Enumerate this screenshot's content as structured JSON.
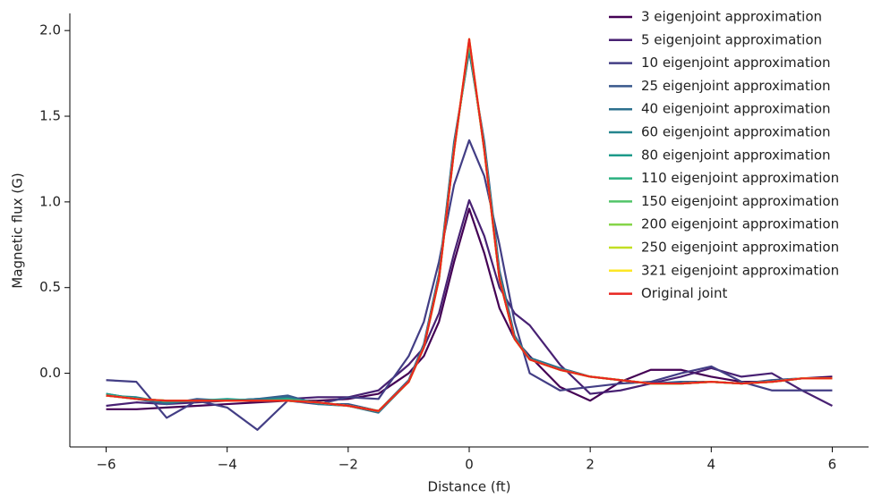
{
  "chart_data": {
    "type": "line",
    "xlabel": "Distance (ft)",
    "ylabel": "Magnetic flux (G)",
    "xlim": [
      -6.6,
      6.6
    ],
    "ylim": [
      -0.43,
      2.1
    ],
    "xticks": [
      {
        "value": -6,
        "label": "−6"
      },
      {
        "value": -4,
        "label": "−4"
      },
      {
        "value": -2,
        "label": "−2"
      },
      0,
      2,
      4,
      6
    ],
    "yticks": [
      {
        "value": 0,
        "label": "0.0"
      },
      {
        "value": 0.5,
        "label": "0.5"
      },
      {
        "value": 1,
        "label": "1.0"
      },
      {
        "value": 1.5,
        "label": "1.5"
      },
      {
        "value": 2,
        "label": "2.0"
      }
    ],
    "legend": "upper right",
    "x": [
      -6,
      -5.5,
      -5,
      -4.5,
      -4,
      -3.5,
      -3,
      -2.5,
      -2,
      -1.5,
      -1,
      -0.75,
      -0.5,
      -0.25,
      0,
      0.25,
      0.5,
      0.75,
      1,
      1.5,
      2,
      2.5,
      3,
      3.5,
      4,
      4.5,
      5,
      5.5,
      6
    ],
    "series": [
      {
        "name": "3 eigenjoint approximation",
        "color": "#440154",
        "values": [
          -0.21,
          -0.21,
          -0.2,
          -0.19,
          -0.18,
          -0.17,
          -0.16,
          -0.16,
          -0.15,
          -0.12,
          0.0,
          0.1,
          0.3,
          0.65,
          0.96,
          0.7,
          0.38,
          0.2,
          0.1,
          -0.08,
          -0.16,
          -0.05,
          0.02,
          0.02,
          -0.02,
          -0.05,
          -0.05,
          -0.03,
          -0.02
        ]
      },
      {
        "name": "5 eigenjoint approximation",
        "color": "#482173",
        "values": [
          -0.19,
          -0.17,
          -0.18,
          -0.17,
          -0.16,
          -0.15,
          -0.15,
          -0.14,
          -0.14,
          -0.1,
          0.05,
          0.15,
          0.35,
          0.7,
          1.01,
          0.8,
          0.5,
          0.35,
          0.28,
          0.05,
          -0.12,
          -0.1,
          -0.06,
          -0.02,
          0.03,
          -0.02,
          0.0,
          -0.1,
          -0.19
        ]
      },
      {
        "name": "10 eigenjoint approximation",
        "color": "#433e85",
        "values": [
          -0.04,
          -0.05,
          -0.26,
          -0.16,
          -0.2,
          -0.33,
          -0.16,
          -0.18,
          -0.14,
          -0.15,
          0.1,
          0.3,
          0.65,
          1.1,
          1.36,
          1.15,
          0.75,
          0.3,
          0.0,
          -0.1,
          -0.08,
          -0.06,
          -0.05,
          0.0,
          0.04,
          -0.05,
          -0.1,
          -0.1,
          -0.1
        ]
      },
      {
        "name": "25 eigenjoint approximation",
        "color": "#38588c",
        "values": [
          -0.12,
          -0.15,
          -0.18,
          -0.15,
          -0.16,
          -0.15,
          -0.13,
          -0.18,
          -0.18,
          -0.22,
          -0.04,
          0.17,
          0.58,
          1.35,
          1.88,
          1.35,
          0.6,
          0.22,
          0.08,
          0.03,
          -0.02,
          -0.04,
          -0.06,
          -0.05,
          -0.05,
          -0.06,
          -0.04,
          -0.03,
          -0.03
        ]
      },
      {
        "name": "40 eigenjoint approximation",
        "color": "#2d708e",
        "values": [
          -0.13,
          -0.15,
          -0.17,
          -0.16,
          -0.16,
          -0.15,
          -0.14,
          -0.18,
          -0.19,
          -0.23,
          -0.05,
          0.16,
          0.57,
          1.33,
          1.89,
          1.33,
          0.58,
          0.21,
          0.09,
          0.03,
          -0.02,
          -0.04,
          -0.06,
          -0.06,
          -0.05,
          -0.06,
          -0.05,
          -0.03,
          -0.03
        ]
      },
      {
        "name": "60 eigenjoint approximation",
        "color": "#25858e",
        "values": [
          -0.13,
          -0.14,
          -0.17,
          -0.16,
          -0.16,
          -0.16,
          -0.15,
          -0.17,
          -0.19,
          -0.22,
          -0.05,
          0.15,
          0.56,
          1.32,
          1.91,
          1.32,
          0.57,
          0.21,
          0.08,
          0.02,
          -0.02,
          -0.04,
          -0.06,
          -0.06,
          -0.05,
          -0.06,
          -0.05,
          -0.03,
          -0.03
        ]
      },
      {
        "name": "80 eigenjoint approximation",
        "color": "#1e9b8a",
        "values": [
          -0.12,
          -0.15,
          -0.16,
          -0.16,
          -0.15,
          -0.16,
          -0.16,
          -0.17,
          -0.19,
          -0.22,
          -0.05,
          0.15,
          0.55,
          1.31,
          1.92,
          1.31,
          0.56,
          0.2,
          0.08,
          0.02,
          -0.02,
          -0.04,
          -0.06,
          -0.06,
          -0.05,
          -0.06,
          -0.05,
          -0.03,
          -0.03
        ]
      },
      {
        "name": "110 eigenjoint approximation",
        "color": "#2ab07f",
        "values": [
          -0.13,
          -0.15,
          -0.16,
          -0.16,
          -0.16,
          -0.16,
          -0.15,
          -0.17,
          -0.19,
          -0.22,
          -0.05,
          0.15,
          0.55,
          1.3,
          1.93,
          1.3,
          0.55,
          0.2,
          0.08,
          0.02,
          -0.02,
          -0.04,
          -0.06,
          -0.06,
          -0.05,
          -0.06,
          -0.05,
          -0.03,
          -0.03
        ]
      },
      {
        "name": "150 eigenjoint approximation",
        "color": "#52c569",
        "values": [
          -0.13,
          -0.15,
          -0.16,
          -0.16,
          -0.16,
          -0.16,
          -0.16,
          -0.17,
          -0.19,
          -0.22,
          -0.05,
          0.15,
          0.55,
          1.3,
          1.94,
          1.3,
          0.55,
          0.2,
          0.08,
          0.02,
          -0.02,
          -0.04,
          -0.06,
          -0.06,
          -0.05,
          -0.06,
          -0.05,
          -0.03,
          -0.03
        ]
      },
      {
        "name": "200 eigenjoint approximation",
        "color": "#86d549",
        "values": [
          -0.13,
          -0.15,
          -0.16,
          -0.16,
          -0.16,
          -0.16,
          -0.16,
          -0.17,
          -0.19,
          -0.22,
          -0.05,
          0.15,
          0.55,
          1.3,
          1.94,
          1.3,
          0.55,
          0.2,
          0.08,
          0.02,
          -0.02,
          -0.04,
          -0.06,
          -0.06,
          -0.05,
          -0.06,
          -0.05,
          -0.03,
          -0.03
        ]
      },
      {
        "name": "250 eigenjoint approximation",
        "color": "#c2df23",
        "values": [
          -0.13,
          -0.15,
          -0.16,
          -0.16,
          -0.16,
          -0.16,
          -0.16,
          -0.17,
          -0.19,
          -0.22,
          -0.05,
          0.15,
          0.55,
          1.3,
          1.95,
          1.3,
          0.55,
          0.2,
          0.08,
          0.02,
          -0.02,
          -0.04,
          -0.06,
          -0.06,
          -0.05,
          -0.06,
          -0.05,
          -0.03,
          -0.03
        ]
      },
      {
        "name": "321 eigenjoint approximation",
        "color": "#fde725",
        "values": [
          -0.13,
          -0.15,
          -0.16,
          -0.16,
          -0.16,
          -0.16,
          -0.16,
          -0.17,
          -0.19,
          -0.22,
          -0.05,
          0.15,
          0.55,
          1.3,
          1.95,
          1.3,
          0.55,
          0.2,
          0.08,
          0.02,
          -0.02,
          -0.04,
          -0.06,
          -0.06,
          -0.05,
          -0.06,
          -0.05,
          -0.03,
          -0.03
        ]
      },
      {
        "name": "Original joint",
        "color": "#e8251f",
        "values": [
          -0.13,
          -0.15,
          -0.16,
          -0.16,
          -0.16,
          -0.16,
          -0.16,
          -0.17,
          -0.19,
          -0.22,
          -0.05,
          0.15,
          0.55,
          1.3,
          1.95,
          1.3,
          0.55,
          0.2,
          0.08,
          0.02,
          -0.02,
          -0.04,
          -0.06,
          -0.06,
          -0.05,
          -0.06,
          -0.05,
          -0.03,
          -0.03
        ]
      }
    ]
  }
}
